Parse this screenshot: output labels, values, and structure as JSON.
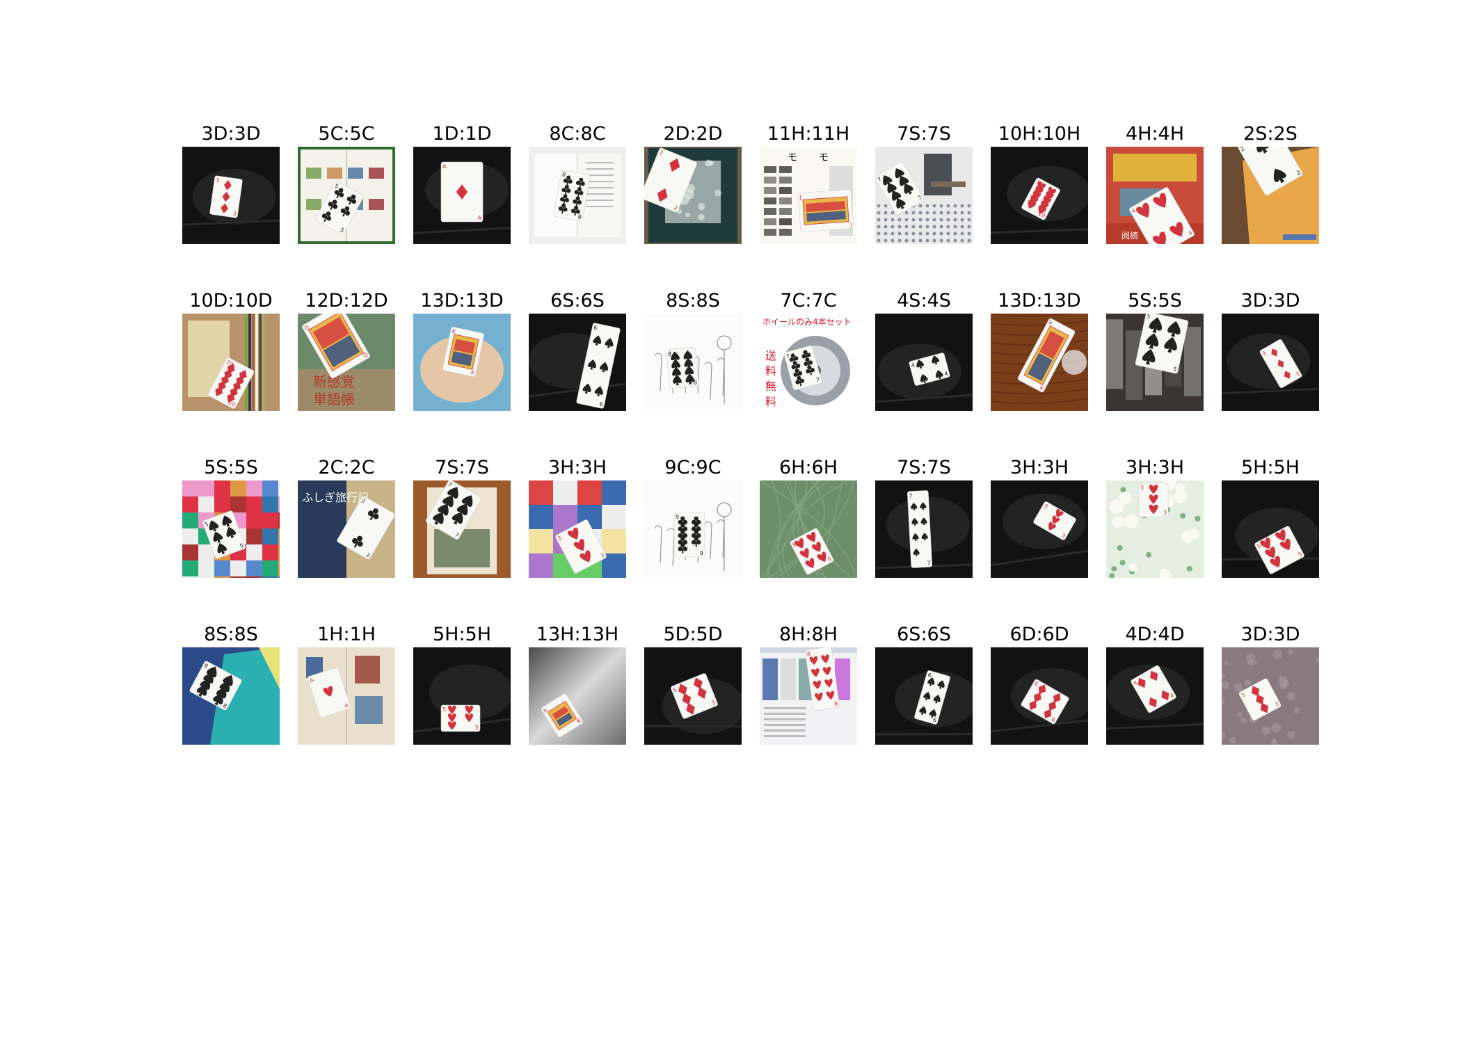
{
  "figure": {
    "rows": [
      {
        "cells": [
          {
            "label": "3D:3D",
            "scene": "dark",
            "suit": "diamond",
            "rank": "3"
          },
          {
            "label": "5C:5C",
            "scene": "book-green",
            "suit": "club",
            "rank": "5"
          },
          {
            "label": "1D:1D",
            "scene": "dark",
            "suit": "diamond",
            "rank": "A"
          },
          {
            "label": "8C:8C",
            "scene": "white-leaflet",
            "suit": "club",
            "rank": "8"
          },
          {
            "label": "2D:2D",
            "scene": "teal-book",
            "suit": "diamond",
            "rank": "2"
          },
          {
            "label": "11H:11H",
            "scene": "manga-page",
            "suit": "heart",
            "rank": "J"
          },
          {
            "label": "7S:7S",
            "scene": "tile-floor",
            "suit": "spade",
            "rank": "7"
          },
          {
            "label": "10H:10H",
            "scene": "dark",
            "suit": "heart",
            "rank": "10"
          },
          {
            "label": "4H:4H",
            "scene": "magazine-red",
            "suit": "heart",
            "rank": "4"
          },
          {
            "label": "2S:2S",
            "scene": "orange-book",
            "suit": "spade",
            "rank": "2"
          }
        ]
      },
      {
        "cells": [
          {
            "label": "10D:10D",
            "scene": "books-beige",
            "suit": "diamond",
            "rank": "10"
          },
          {
            "label": "12D:12D",
            "scene": "dictionary-cover",
            "suit": "diamond",
            "rank": "Q"
          },
          {
            "label": "13D:13D",
            "scene": "palm",
            "suit": "diamond",
            "rank": "K"
          },
          {
            "label": "6S:6S",
            "scene": "dark",
            "suit": "spade",
            "rank": "6"
          },
          {
            "label": "8S:8S",
            "scene": "sketch",
            "suit": "spade",
            "rank": "8"
          },
          {
            "label": "7C:7C",
            "scene": "wheel-ad",
            "suit": "club",
            "rank": "7"
          },
          {
            "label": "4S:4S",
            "scene": "dark",
            "suit": "spade",
            "rank": "4"
          },
          {
            "label": "13D:13D",
            "scene": "wood",
            "suit": "diamond",
            "rank": "K"
          },
          {
            "label": "5S:5S",
            "scene": "photo-bw",
            "suit": "spade",
            "rank": "5"
          },
          {
            "label": "3D:3D",
            "scene": "dark",
            "suit": "diamond",
            "rank": "3"
          }
        ]
      },
      {
        "cells": [
          {
            "label": "5S:5S",
            "scene": "patterns",
            "suit": "spade",
            "rank": "5"
          },
          {
            "label": "2C:2C",
            "scene": "manga-cover",
            "suit": "club",
            "rank": "2"
          },
          {
            "label": "7S:7S",
            "scene": "magazine-wood",
            "suit": "spade",
            "rank": "7"
          },
          {
            "label": "3H:3H",
            "scene": "comic-collage",
            "suit": "heart",
            "rank": "3"
          },
          {
            "label": "9C:9C",
            "scene": "sketch",
            "suit": "club",
            "rank": "9"
          },
          {
            "label": "6H:6H",
            "scene": "green-fabric",
            "suit": "heart",
            "rank": "6"
          },
          {
            "label": "7S:7S",
            "scene": "dark",
            "suit": "spade",
            "rank": "7"
          },
          {
            "label": "3H:3H",
            "scene": "dark",
            "suit": "heart",
            "rank": "3"
          },
          {
            "label": "3H:3H",
            "scene": "floral",
            "suit": "heart",
            "rank": "3"
          },
          {
            "label": "5H:5H",
            "scene": "dark",
            "suit": "heart",
            "rank": "5"
          }
        ]
      },
      {
        "cells": [
          {
            "label": "8S:8S",
            "scene": "blue-book",
            "suit": "spade",
            "rank": "8"
          },
          {
            "label": "1H:1H",
            "scene": "open-book",
            "suit": "heart",
            "rank": "A"
          },
          {
            "label": "5H:5H",
            "scene": "dark",
            "suit": "heart",
            "rank": "5"
          },
          {
            "label": "13H:13H",
            "scene": "grey-metal",
            "suit": "heart",
            "rank": "K"
          },
          {
            "label": "5D:5D",
            "scene": "dark",
            "suit": "diamond",
            "rank": "5"
          },
          {
            "label": "8H:8H",
            "scene": "screenshot",
            "suit": "heart",
            "rank": "8"
          },
          {
            "label": "6S:6S",
            "scene": "dark",
            "suit": "spade",
            "rank": "6"
          },
          {
            "label": "6D:6D",
            "scene": "dark",
            "suit": "diamond",
            "rank": "6"
          },
          {
            "label": "4D:4D",
            "scene": "dark",
            "suit": "diamond",
            "rank": "4"
          },
          {
            "label": "3D:3D",
            "scene": "mauve-carpet",
            "suit": "diamond",
            "rank": "3"
          }
        ]
      }
    ]
  }
}
